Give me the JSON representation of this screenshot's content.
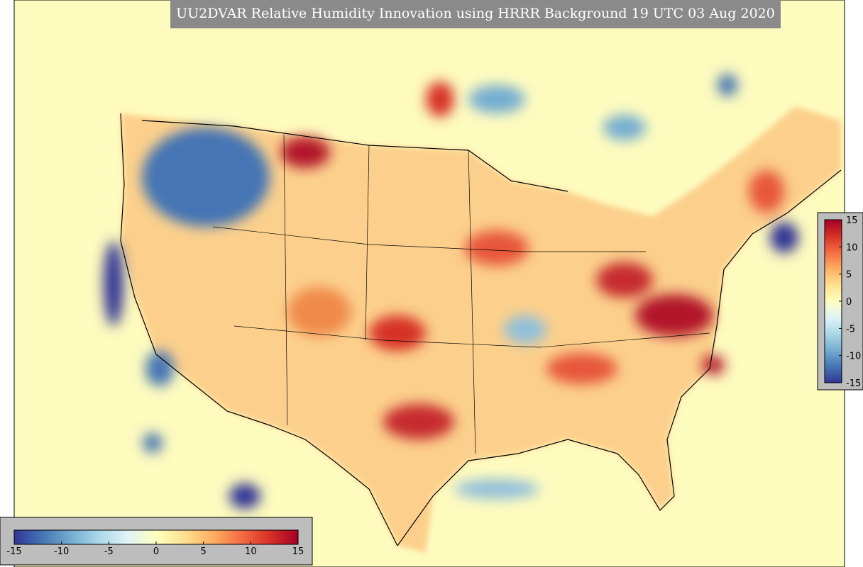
{
  "title": "UU2DVAR Relative Humidity Innovation using HRRR Background 19 UTC 03 Aug 2020",
  "colorbars": [
    {
      "orientation": "horizontal",
      "lim": [
        -15,
        15
      ],
      "ticks": [
        -15,
        -10,
        -5,
        0,
        5,
        10,
        15
      ]
    },
    {
      "orientation": "vertical",
      "lim": [
        -15,
        15
      ],
      "ticks": [
        15,
        10,
        5,
        0,
        -5,
        -10,
        -15
      ]
    }
  ]
}
